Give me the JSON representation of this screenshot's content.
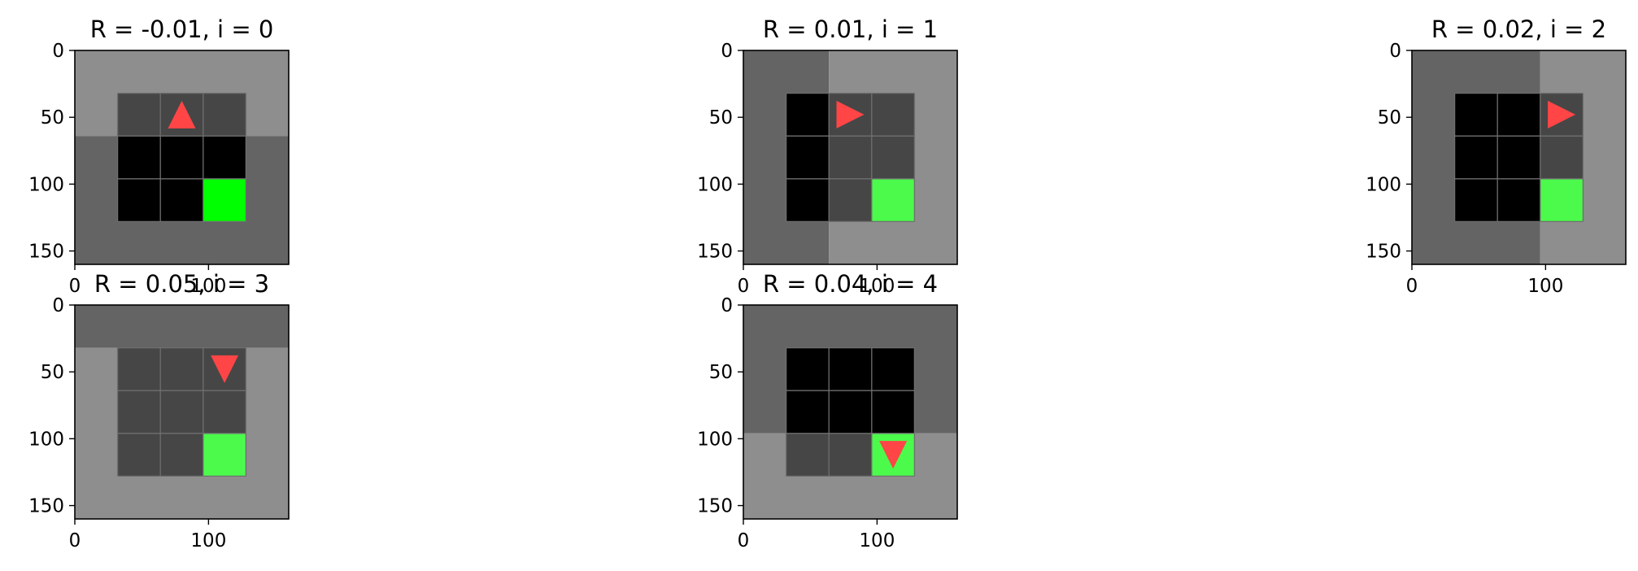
{
  "chart_data": {
    "type": "image-grid",
    "xlim": [
      0,
      160
    ],
    "ylim": [
      160,
      0
    ],
    "xticks": [
      0,
      100
    ],
    "yticks": [
      0,
      50,
      100,
      150
    ],
    "grid_cells": 3,
    "cell_size_units": 32,
    "grid_origin_units": 32,
    "colors": {
      "black": "#000000",
      "dark": "#464646",
      "mid": "#646464",
      "light": "#8e8e8e",
      "gridline": "#6f6f6f",
      "goal_bright": "#00ff00",
      "goal": "#4cfa4c",
      "agent": "#ff4545",
      "axis": "#000000"
    },
    "panels": [
      {
        "title": "R = -0.01, i = 0",
        "background": [
          {
            "x0": 0,
            "y0": 0,
            "x1": 160,
            "y1": 64,
            "color": "light"
          },
          {
            "x0": 0,
            "y0": 64,
            "x1": 160,
            "y1": 160,
            "color": "mid"
          }
        ],
        "cells": [
          [
            "dark",
            "dark",
            "dark"
          ],
          [
            "black",
            "black",
            "black"
          ],
          [
            "black",
            "black",
            "goal_bright"
          ]
        ],
        "agent": {
          "row": 0,
          "col": 1,
          "dir": "up"
        }
      },
      {
        "title": "R = 0.01, i = 1",
        "background": [
          {
            "x0": 0,
            "y0": 0,
            "x1": 64,
            "y1": 160,
            "color": "mid"
          },
          {
            "x0": 64,
            "y0": 0,
            "x1": 160,
            "y1": 160,
            "color": "light"
          }
        ],
        "cells": [
          [
            "black",
            "dark",
            "dark"
          ],
          [
            "black",
            "dark",
            "dark"
          ],
          [
            "black",
            "dark",
            "goal"
          ]
        ],
        "agent": {
          "row": 0,
          "col": 1,
          "dir": "right"
        }
      },
      {
        "title": "R = 0.02, i = 2",
        "background": [
          {
            "x0": 0,
            "y0": 0,
            "x1": 96,
            "y1": 160,
            "color": "mid"
          },
          {
            "x0": 96,
            "y0": 0,
            "x1": 160,
            "y1": 160,
            "color": "light"
          }
        ],
        "cells": [
          [
            "black",
            "black",
            "dark"
          ],
          [
            "black",
            "black",
            "dark"
          ],
          [
            "black",
            "black",
            "goal"
          ]
        ],
        "agent": {
          "row": 0,
          "col": 2,
          "dir": "right"
        }
      },
      {
        "title": "R = 0.05, i = 3",
        "background": [
          {
            "x0": 0,
            "y0": 0,
            "x1": 160,
            "y1": 32,
            "color": "mid"
          },
          {
            "x0": 0,
            "y0": 32,
            "x1": 160,
            "y1": 160,
            "color": "light"
          }
        ],
        "cells": [
          [
            "dark",
            "dark",
            "dark"
          ],
          [
            "dark",
            "dark",
            "dark"
          ],
          [
            "dark",
            "dark",
            "goal"
          ]
        ],
        "agent": {
          "row": 0,
          "col": 2,
          "dir": "down"
        }
      },
      {
        "title": "R = 0.04, i = 4",
        "background": [
          {
            "x0": 0,
            "y0": 0,
            "x1": 160,
            "y1": 96,
            "color": "mid"
          },
          {
            "x0": 0,
            "y0": 96,
            "x1": 160,
            "y1": 160,
            "color": "light"
          }
        ],
        "cells": [
          [
            "black",
            "black",
            "black"
          ],
          [
            "black",
            "black",
            "black"
          ],
          [
            "dark",
            "dark",
            "goal"
          ]
        ],
        "agent": {
          "row": 2,
          "col": 2,
          "dir": "down"
        }
      }
    ]
  }
}
